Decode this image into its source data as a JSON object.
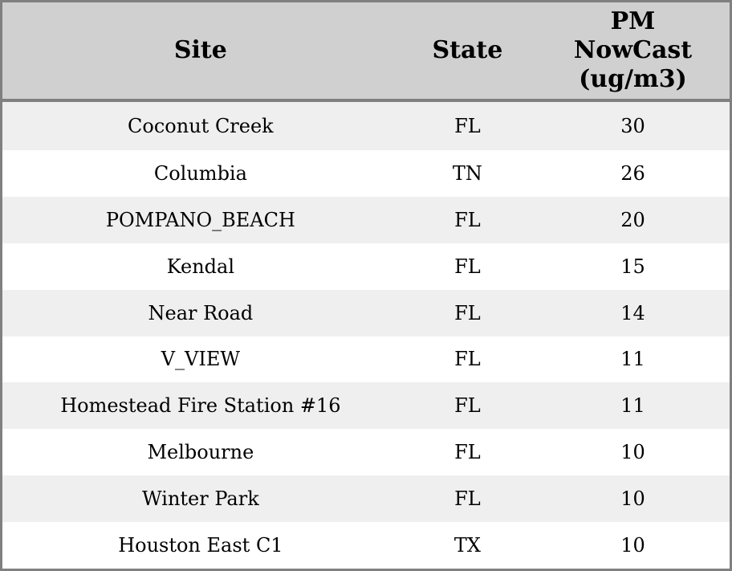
{
  "header": {
    "site": "Site",
    "state": "State",
    "pm": "PM\nNowCast\n(ug/m3)"
  },
  "colors": {
    "header_bg": "#d0d0d0",
    "border": "#808080",
    "row_alt_bg": "#efefef",
    "row_bg": "#ffffff",
    "text": "#000000"
  },
  "chart_data": {
    "type": "table",
    "columns": [
      "Site",
      "State",
      "PM NowCast (ug/m3)"
    ],
    "rows": [
      [
        "Coconut Creek",
        "FL",
        30
      ],
      [
        "Columbia",
        "TN",
        26
      ],
      [
        "POMPANO_BEACH",
        "FL",
        20
      ],
      [
        "Kendal",
        "FL",
        15
      ],
      [
        "Near Road",
        "FL",
        14
      ],
      [
        "V_VIEW",
        "FL",
        11
      ],
      [
        "Homestead Fire Station #16",
        "FL",
        11
      ],
      [
        "Melbourne",
        "FL",
        10
      ],
      [
        "Winter Park",
        "FL",
        10
      ],
      [
        "Houston East C1",
        "TX",
        10
      ]
    ]
  }
}
